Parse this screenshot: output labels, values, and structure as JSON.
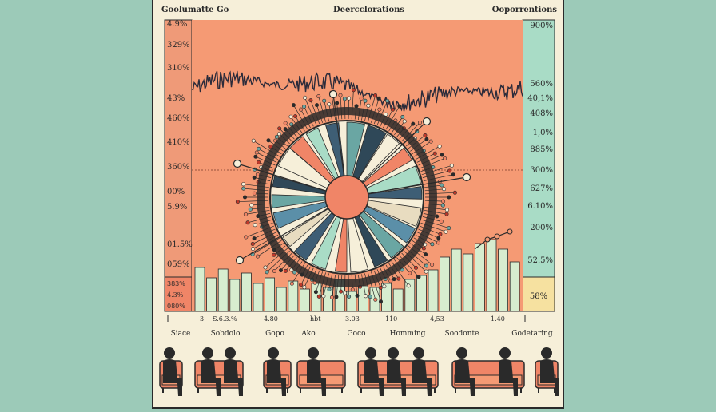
{
  "header": {
    "left": "Goolumatte Go",
    "center": "Deercclorations",
    "right": "Ooporrentions"
  },
  "left_labels": [
    "4.9%",
    "329%",
    "310%",
    "43%",
    "460%",
    "410%",
    "360%",
    "00%",
    "5.9%",
    "01.5%",
    "059%"
  ],
  "left_box_labels": [
    "383%",
    "4.3%",
    "080%"
  ],
  "right_labels": [
    "900%",
    "560%",
    "40,1%",
    "408%",
    "1,0%",
    "885%",
    "300%",
    "627%",
    "6.10%",
    "200%",
    "52.5%"
  ],
  "right_box_label": "58%",
  "x_tick_labels": [
    "3",
    "S.6.3.%",
    "4.80",
    "hbt",
    "3.03",
    "110",
    "4,53",
    "1.40"
  ],
  "categories": [
    "Siace",
    "Sobdolo",
    "Gopo",
    "Ako",
    "Goco",
    "Homming",
    "Soodonte",
    "Godetaring"
  ],
  "colors": {
    "background": "#9ccab8",
    "card": "#f6efd9",
    "plot_area": "#f59a74",
    "left_panel": "#ef9a78",
    "right_panel": "#a9dcc6",
    "right_box": "#f6e1a0",
    "bars": "#d7edcf",
    "center_dot": "#f08567",
    "ink": "#2a2a2a"
  },
  "icons": [
    "seated-person-icon",
    "couch-icon",
    "chair-icon"
  ]
}
